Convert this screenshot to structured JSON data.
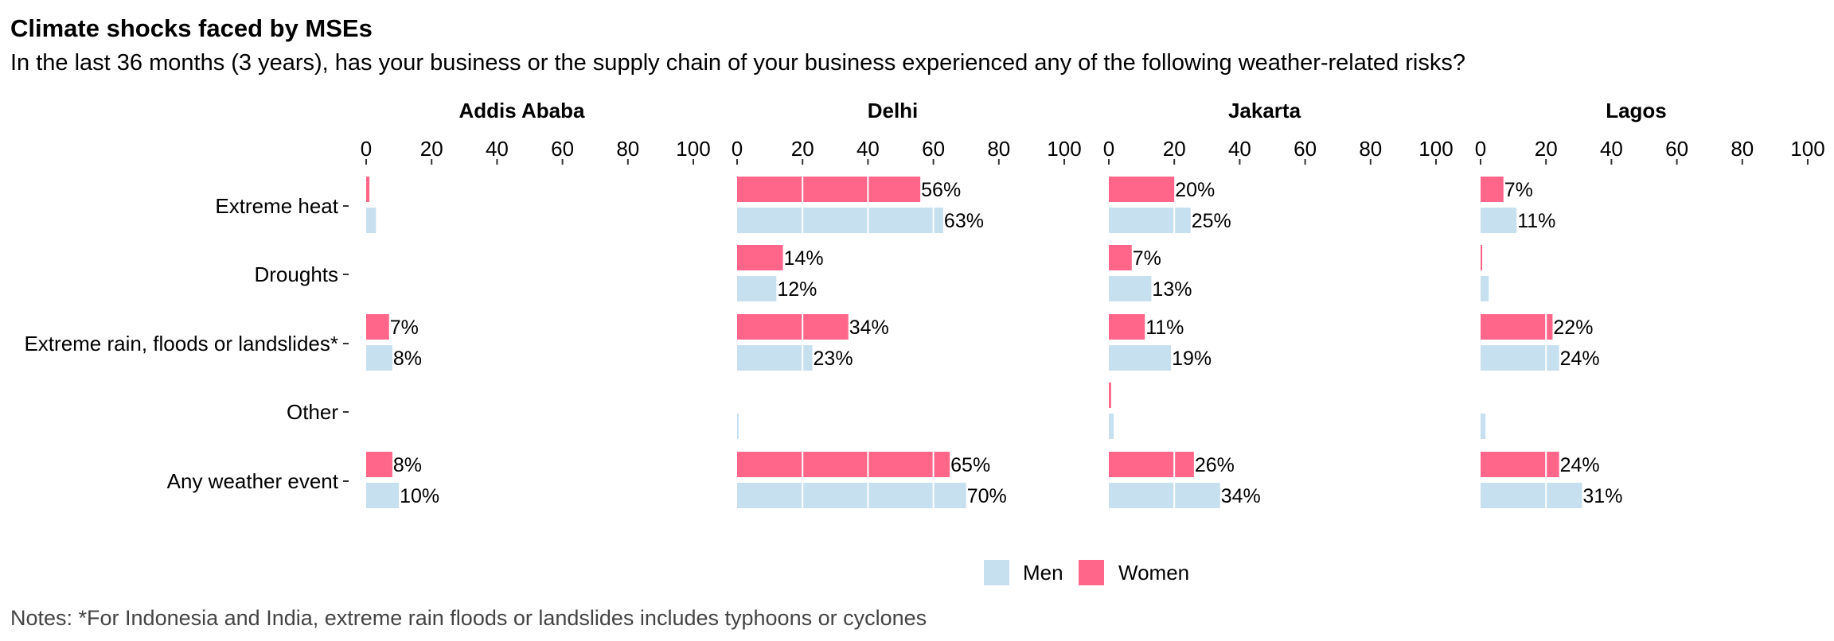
{
  "title": "Climate shocks faced by MSEs",
  "subtitle": "In the last 36 months (3 years), has your business or the supply chain of your business experienced any of the following weather-related risks?",
  "notes": "Notes: *For Indonesia and India, extreme rain floods or landslides includes typhoons or cyclones",
  "colors": {
    "Men": "#c6e0f0",
    "Women": "#ff6689"
  },
  "chart_data": {
    "type": "bar",
    "orientation": "horizontal",
    "facets": [
      "Addis Ababa",
      "Delhi",
      "Jakarta",
      "Lagos"
    ],
    "categories": [
      "Extreme heat",
      "Droughts",
      "Extreme rain, floods or landslides*",
      "Other",
      "Any weather event"
    ],
    "xlim": [
      0,
      100
    ],
    "xticks": [
      0,
      20,
      40,
      60,
      80,
      100
    ],
    "legend": [
      "Men",
      "Women"
    ],
    "legend_position": "bottom",
    "grid": false,
    "panels": [
      {
        "facet": "Addis Ababa",
        "series": [
          {
            "name": "Women",
            "values": [
              1,
              null,
              7,
              null,
              8
            ],
            "labels": [
              null,
              null,
              "7%",
              null,
              "8%"
            ]
          },
          {
            "name": "Men",
            "values": [
              3,
              null,
              8,
              null,
              10
            ],
            "labels": [
              null,
              null,
              "8%",
              null,
              "10%"
            ]
          }
        ]
      },
      {
        "facet": "Delhi",
        "series": [
          {
            "name": "Women",
            "values": [
              56,
              14,
              34,
              null,
              65
            ],
            "labels": [
              "56%",
              "14%",
              "34%",
              null,
              "65%"
            ]
          },
          {
            "name": "Men",
            "values": [
              63,
              12,
              23,
              0.5,
              70
            ],
            "labels": [
              "63%",
              "12%",
              "23%",
              null,
              "70%"
            ]
          }
        ]
      },
      {
        "facet": "Jakarta",
        "series": [
          {
            "name": "Women",
            "values": [
              20,
              7,
              11,
              0.7,
              26
            ],
            "labels": [
              "20%",
              "7%",
              "11%",
              null,
              "26%"
            ]
          },
          {
            "name": "Men",
            "values": [
              25,
              13,
              19,
              1.5,
              34
            ],
            "labels": [
              "25%",
              "13%",
              "19%",
              null,
              "34%"
            ]
          }
        ]
      },
      {
        "facet": "Lagos",
        "series": [
          {
            "name": "Women",
            "values": [
              7,
              0.5,
              22,
              null,
              24
            ],
            "labels": [
              "7%",
              null,
              "22%",
              null,
              "24%"
            ]
          },
          {
            "name": "Men",
            "values": [
              11,
              2.5,
              24,
              1.5,
              31
            ],
            "labels": [
              "11%",
              null,
              "24%",
              null,
              "31%"
            ]
          }
        ]
      }
    ]
  }
}
